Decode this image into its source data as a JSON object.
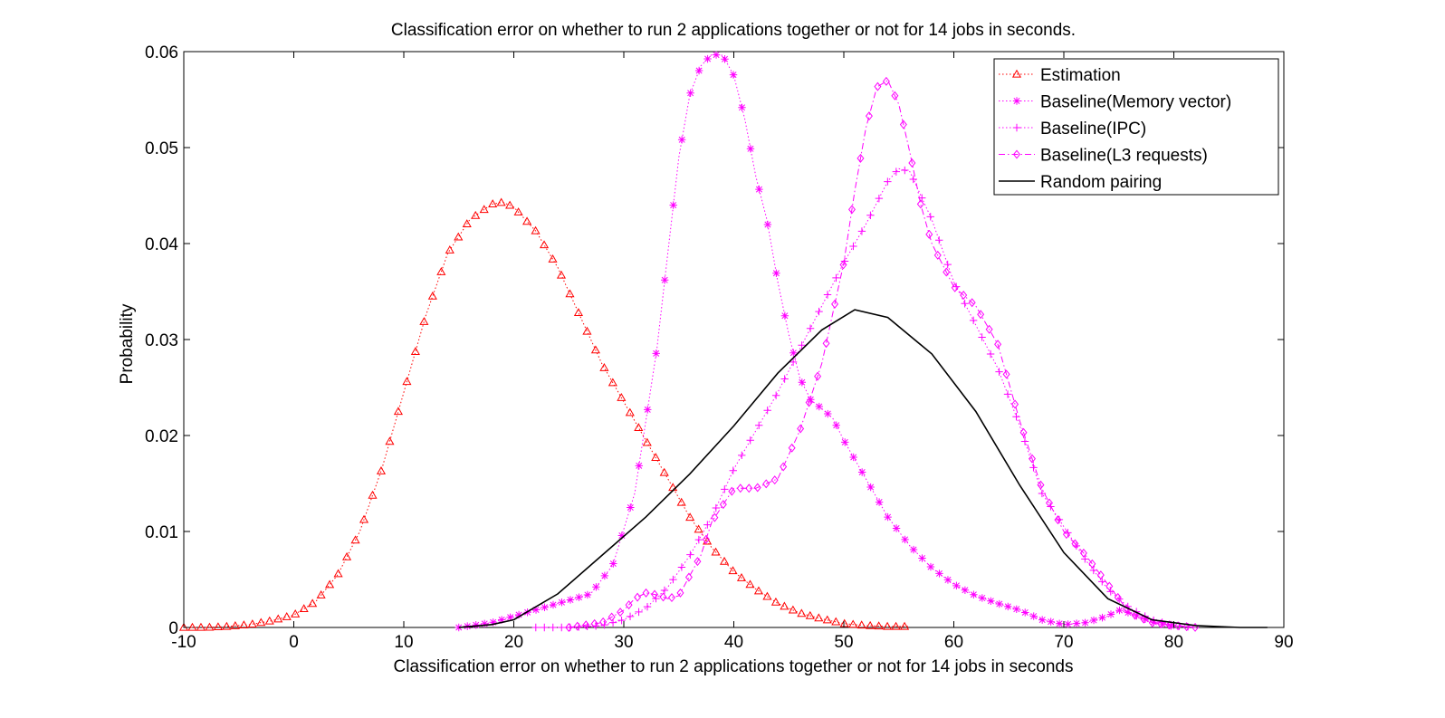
{
  "chart_data": {
    "type": "line",
    "title": "Classification error on whether to run 2 applications together or not for 14 jobs in seconds.",
    "xlabel": "Classification error on whether to run 2 applications together or not for 14 jobs in seconds",
    "ylabel": "Probability",
    "xlim": [
      -10,
      90
    ],
    "ylim": [
      0,
      0.06
    ],
    "xticks": [
      -10,
      0,
      10,
      20,
      30,
      40,
      50,
      60,
      70,
      80,
      90
    ],
    "xtick_labels": [
      "-10",
      "0",
      "10",
      "20",
      "30",
      "40",
      "50",
      "60",
      "70",
      "80",
      "90"
    ],
    "yticks": [
      0,
      0.01,
      0.02,
      0.03,
      0.04,
      0.05,
      0.06
    ],
    "ytick_labels": [
      "0",
      "0.01",
      "0.02",
      "0.03",
      "0.04",
      "0.05",
      "0.06"
    ],
    "grid": false,
    "legend_position": "top-right",
    "series": [
      {
        "name": "Estimation",
        "color": "#ff0000",
        "line_style": "dotted",
        "marker": "triangle",
        "x": [
          -10,
          -8,
          -6,
          -4,
          -2,
          0,
          2,
          4,
          6,
          8,
          10,
          12,
          14,
          16,
          18,
          19,
          20,
          22,
          24,
          26,
          28,
          30,
          32,
          34,
          36,
          38,
          40,
          42,
          44,
          46,
          48,
          50,
          52,
          54,
          56
        ],
        "y": [
          0,
          0,
          0.0001,
          0.0003,
          0.0007,
          0.0013,
          0.0027,
          0.0055,
          0.01,
          0.0165,
          0.0245,
          0.0325,
          0.039,
          0.0425,
          0.0441,
          0.0443,
          0.0438,
          0.0413,
          0.0375,
          0.0325,
          0.0275,
          0.0235,
          0.0195,
          0.0155,
          0.0115,
          0.0083,
          0.0058,
          0.004,
          0.0025,
          0.0015,
          0.0009,
          0.0004,
          0.0002,
          0.0001,
          0.0001
        ]
      },
      {
        "name": "Baseline(Memory vector)",
        "color": "#ff00ff",
        "line_style": "dotted",
        "marker": "asterisk",
        "x": [
          15,
          18,
          21,
          24,
          27,
          29,
          31,
          33,
          34,
          35,
          36,
          37,
          38,
          39,
          40,
          41,
          42,
          43,
          44,
          45,
          46,
          47,
          48,
          49,
          50,
          52,
          54,
          56,
          58,
          60,
          62,
          64,
          66,
          68,
          70,
          72,
          74,
          75,
          76,
          78,
          80
        ],
        "y": [
          0,
          0.0005,
          0.0015,
          0.0025,
          0.0035,
          0.0065,
          0.014,
          0.029,
          0.039,
          0.049,
          0.0555,
          0.0585,
          0.0597,
          0.0596,
          0.0575,
          0.053,
          0.047,
          0.0425,
          0.036,
          0.0305,
          0.026,
          0.0237,
          0.0228,
          0.0218,
          0.0195,
          0.0155,
          0.0115,
          0.0085,
          0.0062,
          0.0045,
          0.0033,
          0.0025,
          0.0018,
          0.0008,
          0.0003,
          0.0005,
          0.0012,
          0.0018,
          0.0015,
          0.0006,
          0.0001
        ]
      },
      {
        "name": "Baseline(IPC)",
        "color": "#ff00ff",
        "line_style": "dotted",
        "marker": "plus",
        "x": [
          22,
          25,
          28,
          30,
          32,
          34,
          36,
          38,
          40,
          42,
          44,
          46,
          48,
          50,
          52,
          54,
          55,
          56,
          58,
          60,
          62,
          64,
          66,
          68,
          70,
          72,
          74,
          76,
          78,
          80,
          82
        ],
        "y": [
          0,
          0,
          0.0002,
          0.0008,
          0.002,
          0.0042,
          0.0075,
          0.0115,
          0.0165,
          0.0205,
          0.0245,
          0.029,
          0.0335,
          0.038,
          0.042,
          0.0465,
          0.0478,
          0.0475,
          0.0425,
          0.036,
          0.0315,
          0.027,
          0.021,
          0.014,
          0.0105,
          0.007,
          0.004,
          0.002,
          0.0008,
          0.0002,
          0
        ]
      },
      {
        "name": "Baseline(L3 requests)",
        "color": "#ff00ff",
        "line_style": "dash-dot",
        "marker": "diamond",
        "x": [
          25,
          28,
          30,
          31,
          32,
          33,
          34,
          35,
          37,
          38,
          40,
          42,
          44,
          46,
          48,
          50,
          51,
          52,
          53,
          54,
          55,
          56,
          57,
          58,
          60,
          62,
          64,
          66,
          68,
          70,
          72,
          74,
          76,
          78,
          80,
          82
        ],
        "y": [
          0,
          0.0005,
          0.0018,
          0.003,
          0.0036,
          0.0034,
          0.003,
          0.0033,
          0.0075,
          0.011,
          0.0145,
          0.0145,
          0.0155,
          0.0205,
          0.0275,
          0.038,
          0.0455,
          0.052,
          0.0563,
          0.057,
          0.0545,
          0.0495,
          0.044,
          0.04,
          0.0355,
          0.0335,
          0.0295,
          0.0215,
          0.0145,
          0.01,
          0.0075,
          0.0045,
          0.0015,
          0.0005,
          0.0002,
          0
        ]
      },
      {
        "name": "Random pairing",
        "color": "#000000",
        "line_style": "solid",
        "marker": "none",
        "x": [
          15,
          18,
          20,
          24,
          28,
          32,
          36,
          40,
          44,
          48,
          51,
          54,
          58,
          62,
          66,
          70,
          74,
          78,
          82,
          86,
          88.5
        ],
        "y": [
          0,
          0.0003,
          0.0008,
          0.0035,
          0.0075,
          0.0115,
          0.016,
          0.021,
          0.0265,
          0.031,
          0.0331,
          0.0323,
          0.0285,
          0.0225,
          0.0148,
          0.0078,
          0.003,
          0.0008,
          0.0002,
          0,
          0
        ]
      }
    ]
  }
}
